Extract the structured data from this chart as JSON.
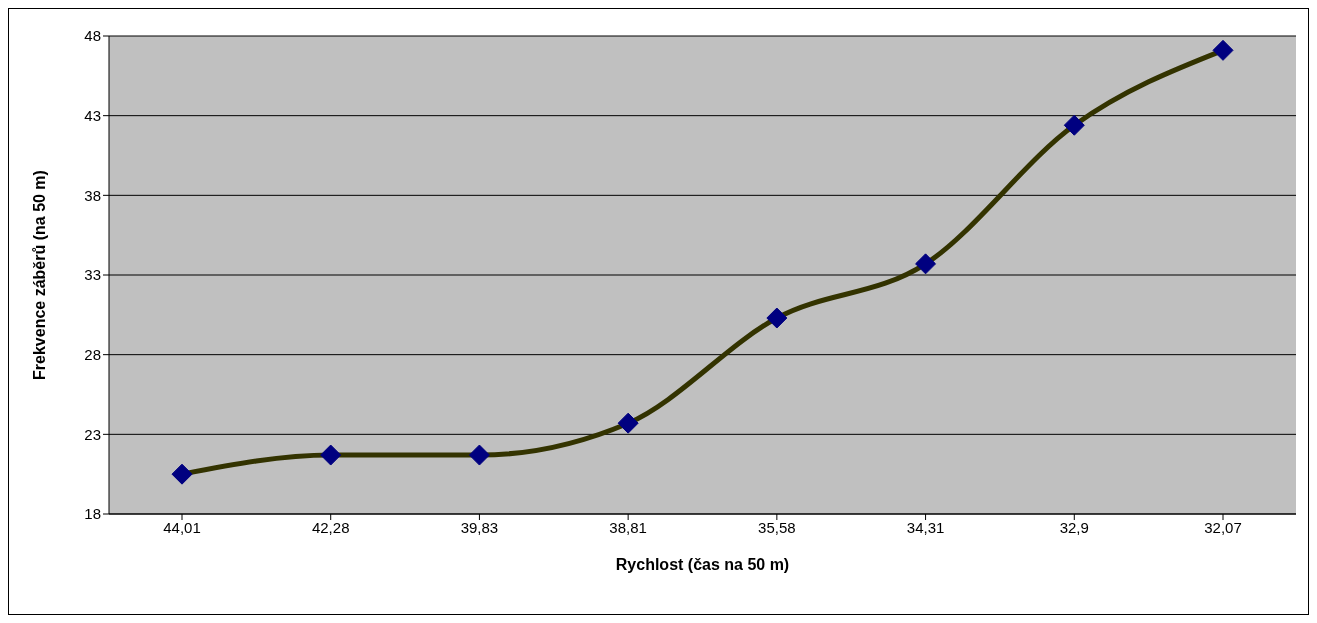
{
  "chart_data": {
    "type": "line",
    "xlabel": "Rychlost (čas na 50 m)",
    "ylabel": "Frekvence záběrů (na 50 m)",
    "categories": [
      "44,01",
      "42,28",
      "39,83",
      "38,81",
      "35,58",
      "34,31",
      "32,9",
      "32,07"
    ],
    "series": [
      {
        "color": "#333300",
        "values": [
          20.5,
          21.7,
          21.7,
          23.7,
          30.3,
          33.7,
          42.4,
          47.1
        ]
      }
    ],
    "ylim": [
      18,
      48
    ],
    "yticks": [
      18,
      23,
      28,
      33,
      38,
      43,
      48
    ],
    "grid": "y",
    "marker": "diamond",
    "line_style": "solid"
  }
}
